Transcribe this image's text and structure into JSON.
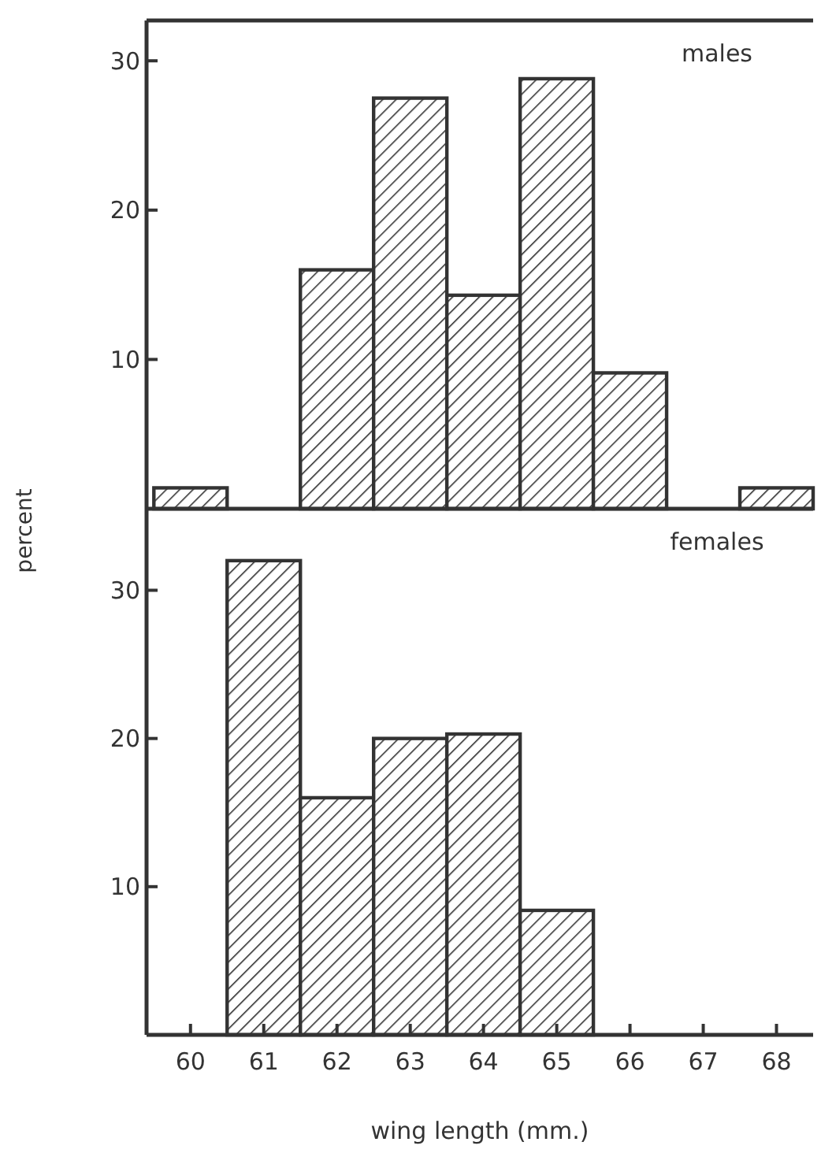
{
  "chart_data": [
    {
      "type": "histogram",
      "annotations": [
        "males"
      ],
      "ylabel": "percent",
      "bins": [
        59.5,
        60.5,
        61.5,
        62.5,
        63.5,
        64.5,
        65.5,
        66.5,
        67.5,
        68.5
      ],
      "values": [
        1.4,
        0,
        16,
        27.5,
        14.3,
        28.8,
        9.1,
        0,
        1.4
      ],
      "color": "#333333",
      "xlim": [
        59.4,
        68.5
      ],
      "ylim": [
        0,
        32.7
      ],
      "yticks": [
        10,
        20,
        30
      ],
      "tick_labels": "y"
    },
    {
      "type": "histogram",
      "annotations": [
        "females"
      ],
      "xlabel": "wing length (mm.)",
      "bins": [
        60.5,
        61.5,
        62.5,
        63.5,
        64.5,
        65.5
      ],
      "values": [
        32,
        16,
        20,
        20.3,
        8.4
      ],
      "color": "#333333",
      "xlim": [
        59.4,
        68.5
      ],
      "xticks": [
        60,
        61,
        62,
        63,
        64,
        65,
        66,
        67,
        68
      ],
      "ylim": [
        0,
        35.5
      ],
      "yticks": [
        10,
        20,
        30
      ]
    }
  ]
}
